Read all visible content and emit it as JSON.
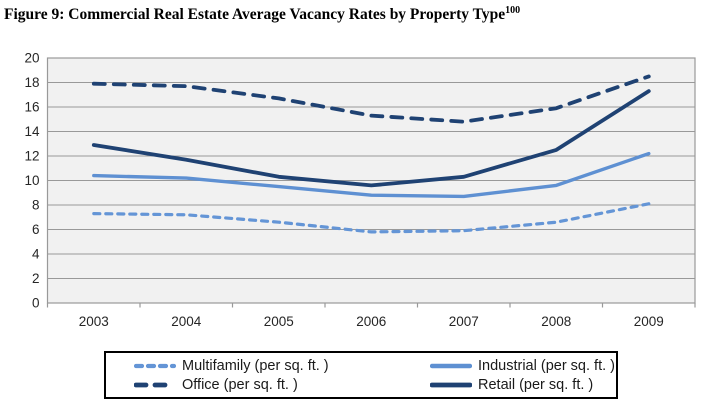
{
  "figure": {
    "title": "Figure 9: Commercial Real Estate Average Vacancy Rates by Property Type",
    "superscript": "100"
  },
  "chart_data": {
    "type": "line",
    "title": "Commercial Real Estate Average Vacancy Rates by Property Type",
    "categories": [
      "2003",
      "2004",
      "2005",
      "2006",
      "2007",
      "2008",
      "2009"
    ],
    "series": [
      {
        "id": "multifamily",
        "name": "Multifamily (per sq. ft. )",
        "values": [
          7.3,
          7.2,
          6.6,
          5.8,
          5.9,
          6.6,
          8.1
        ],
        "color": "#6495D6",
        "style": "dashed",
        "dash": "6 6",
        "width": 3.2
      },
      {
        "id": "industrial",
        "name": "Industrial (per sq. ft. )",
        "values": [
          10.4,
          10.2,
          9.5,
          8.8,
          8.7,
          9.6,
          12.2
        ],
        "color": "#5E90D2",
        "style": "solid",
        "dash": null,
        "width": 3.4
      },
      {
        "id": "office",
        "name": "Office (per sq. ft. )",
        "values": [
          17.9,
          17.7,
          16.7,
          15.3,
          14.8,
          15.9,
          18.5
        ],
        "color": "#1F4273",
        "style": "dashed",
        "dash": "11 9",
        "width": 3.8
      },
      {
        "id": "retail",
        "name": "Retail (per sq. ft. )",
        "values": [
          12.9,
          11.7,
          10.3,
          9.6,
          10.3,
          12.5,
          17.3
        ],
        "color": "#1F4273",
        "style": "solid",
        "dash": null,
        "width": 3.8
      }
    ],
    "xlabel": "",
    "ylabel": "",
    "ylim": [
      0,
      20
    ],
    "ytick_step": 2,
    "grid": true,
    "legend_position": "bottom",
    "plot_bg": "#F1F1F1",
    "grid_color": "#999999",
    "tick_text_color": "#262626"
  }
}
